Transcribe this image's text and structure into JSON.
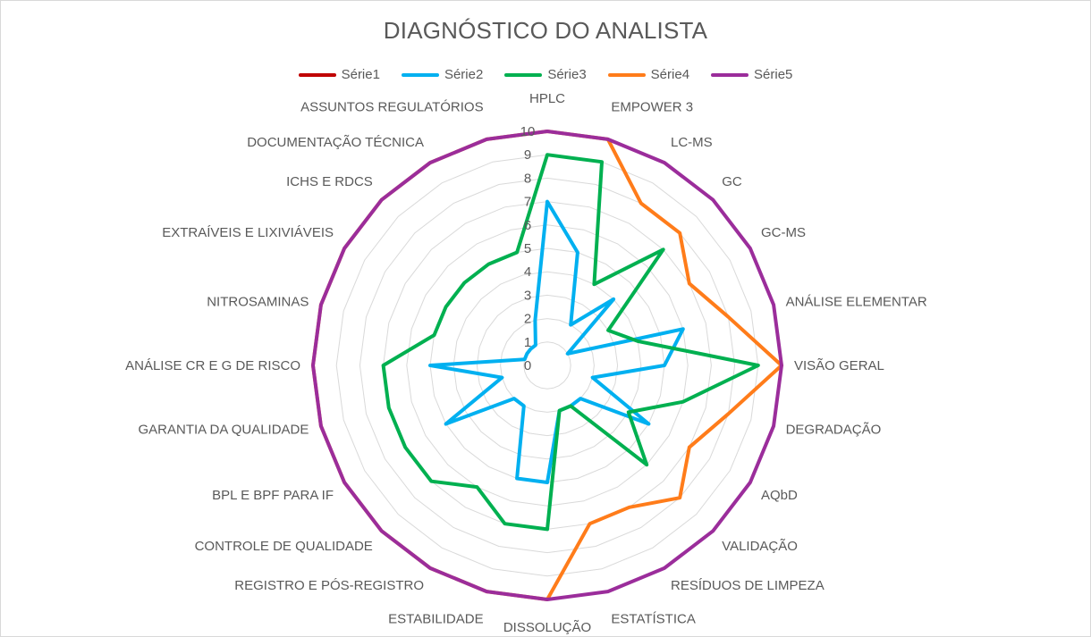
{
  "chart_data": {
    "type": "radar",
    "title": "DIAGNÓSTICO DO ANALISTA",
    "legend_position": "top",
    "grid": true,
    "rlim": [
      0,
      10
    ],
    "ticks": [
      "0",
      "1",
      "2",
      "3",
      "4",
      "5",
      "6",
      "7",
      "8",
      "9",
      "10"
    ],
    "categories": [
      "HPLC",
      "EMPOWER 3",
      "LC-MS",
      "GC",
      "GC-MS",
      "ANÁLISE ELEMENTAR",
      "VISÃO GERAL",
      "DEGRADAÇÃO",
      "AQbD",
      "VALIDAÇÃO",
      "RESÍDUOS DE LIMPEZA",
      "ESTATÍSTICA",
      "DISSOLUÇÃO",
      "ESTABILIDADE",
      "REGISTRO E PÓS-REGISTRO",
      "CONTROLE DE QUALIDADE",
      "BPL E BPF PARA IF",
      "GARANTIA DA QUALIDADE",
      "ANÁLISE CR E G DE RISCO",
      "NITROSAMINAS",
      "EXTRAÍVEIS E LIXIVIÁVEIS",
      "ICHS E RDCS",
      "DOCUMENTAÇÃO TÉCNICA",
      "ASSUNTOS REGULATÓRIOS"
    ],
    "series": [
      {
        "name": "Série1",
        "color": "#c00000",
        "values": [
          0,
          0,
          0,
          0,
          0,
          0,
          0,
          0,
          0,
          0,
          0,
          0,
          0,
          0,
          0,
          0,
          0,
          0,
          0,
          0,
          0,
          0,
          0,
          0
        ]
      },
      {
        "name": "Série2",
        "color": "#00b0f0",
        "values": [
          7,
          5,
          2,
          4,
          1,
          6,
          5,
          2,
          5,
          2,
          2,
          2,
          5,
          5,
          2,
          2,
          5,
          2,
          5,
          1,
          1,
          1,
          1,
          2
        ]
      },
      {
        "name": "Série3",
        "color": "#00b050",
        "values": [
          9,
          9,
          4,
          7,
          3,
          4,
          9,
          6,
          4,
          6,
          2,
          2,
          7,
          7,
          6,
          7,
          7,
          7,
          7,
          5,
          5,
          5,
          5,
          5
        ]
      },
      {
        "name": "Série4",
        "color": "#ff7c1a",
        "values": [
          10,
          10,
          8,
          8,
          7,
          8,
          10,
          8,
          7,
          8,
          7,
          7,
          10,
          10,
          10,
          10,
          10,
          10,
          10,
          10,
          10,
          10,
          10,
          10
        ]
      },
      {
        "name": "Série5",
        "color": "#9b2d9b",
        "values": [
          10,
          10,
          10,
          10,
          10,
          10,
          10,
          10,
          10,
          10,
          10,
          10,
          10,
          10,
          10,
          10,
          10,
          10,
          10,
          10,
          10,
          10,
          10,
          10
        ]
      }
    ]
  }
}
